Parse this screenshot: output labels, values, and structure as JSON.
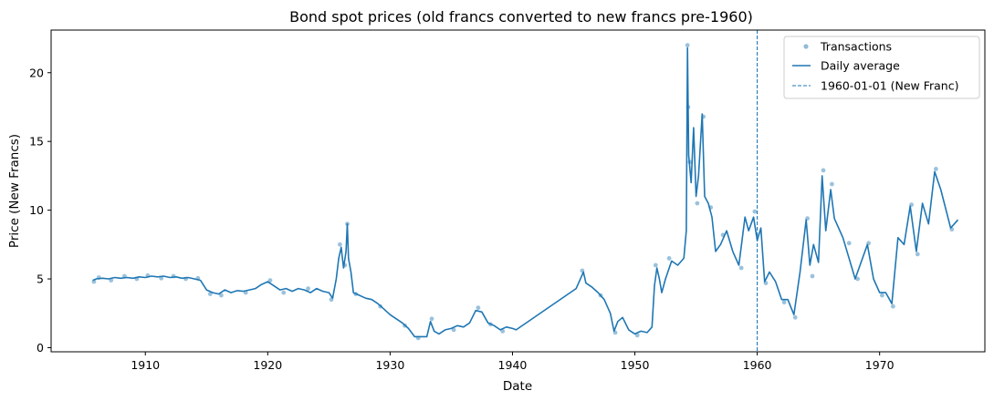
{
  "chart_data": {
    "type": "line",
    "title": "Bond spot prices (old francs converted to new francs pre-1960)",
    "xlabel": "Date",
    "ylabel": "Price (New Francs)",
    "xlim": [
      1902.3,
      1978.6
    ],
    "ylim": [
      -0.3,
      23.1
    ],
    "x_ticks": [
      1910,
      1920,
      1930,
      1940,
      1950,
      1960,
      1970
    ],
    "y_ticks": [
      0,
      5,
      10,
      15,
      20
    ],
    "grid": false,
    "legend_position": "top-right",
    "colors": {
      "line": "#1f77b4",
      "points": "#1f77b4",
      "vline": "#1f77b4"
    },
    "legend": [
      {
        "label": "Transactions",
        "kind": "points"
      },
      {
        "label": "Daily average",
        "kind": "line"
      },
      {
        "label": "1960-01-01 (New Franc)",
        "kind": "dashed"
      }
    ],
    "reference_line": {
      "label": "1960-01-01 (New Franc)",
      "x": 1960.0
    },
    "series": [
      {
        "name": "Daily average",
        "points": [
          [
            1905.7,
            4.9
          ],
          [
            1906.0,
            5.0
          ],
          [
            1906.5,
            5.05
          ],
          [
            1907.0,
            5.0
          ],
          [
            1907.5,
            5.1
          ],
          [
            1908.0,
            5.05
          ],
          [
            1908.5,
            5.1
          ],
          [
            1909.0,
            5.05
          ],
          [
            1909.5,
            5.15
          ],
          [
            1910.0,
            5.1
          ],
          [
            1910.5,
            5.2
          ],
          [
            1911.0,
            5.15
          ],
          [
            1911.5,
            5.2
          ],
          [
            1912.0,
            5.1
          ],
          [
            1912.5,
            5.15
          ],
          [
            1913.0,
            5.05
          ],
          [
            1913.5,
            5.1
          ],
          [
            1914.0,
            5.0
          ],
          [
            1914.5,
            4.9
          ],
          [
            1915.0,
            4.2
          ],
          [
            1915.5,
            4.0
          ],
          [
            1916.0,
            3.9
          ],
          [
            1916.5,
            4.2
          ],
          [
            1917.0,
            4.0
          ],
          [
            1917.5,
            4.15
          ],
          [
            1918.0,
            4.1
          ],
          [
            1918.5,
            4.2
          ],
          [
            1919.0,
            4.3
          ],
          [
            1919.5,
            4.6
          ],
          [
            1920.0,
            4.8
          ],
          [
            1920.5,
            4.5
          ],
          [
            1921.0,
            4.2
          ],
          [
            1921.5,
            4.3
          ],
          [
            1922.0,
            4.1
          ],
          [
            1922.5,
            4.3
          ],
          [
            1923.0,
            4.2
          ],
          [
            1923.5,
            4.0
          ],
          [
            1924.0,
            4.3
          ],
          [
            1924.5,
            4.1
          ],
          [
            1925.0,
            4.0
          ],
          [
            1925.3,
            3.6
          ],
          [
            1925.6,
            5.0
          ],
          [
            1925.8,
            6.5
          ],
          [
            1926.0,
            7.3
          ],
          [
            1926.2,
            5.8
          ],
          [
            1926.4,
            7.0
          ],
          [
            1926.5,
            9.0
          ],
          [
            1926.6,
            6.5
          ],
          [
            1926.8,
            5.5
          ],
          [
            1927.0,
            4.0
          ],
          [
            1927.5,
            3.8
          ],
          [
            1928.0,
            3.6
          ],
          [
            1928.5,
            3.5
          ],
          [
            1929.0,
            3.2
          ],
          [
            1929.5,
            2.8
          ],
          [
            1930.0,
            2.4
          ],
          [
            1930.5,
            2.1
          ],
          [
            1931.0,
            1.8
          ],
          [
            1931.5,
            1.4
          ],
          [
            1932.0,
            0.8
          ],
          [
            1932.5,
            0.8
          ],
          [
            1933.0,
            0.8
          ],
          [
            1933.3,
            1.9
          ],
          [
            1933.6,
            1.2
          ],
          [
            1934.0,
            1.0
          ],
          [
            1934.5,
            1.3
          ],
          [
            1935.0,
            1.4
          ],
          [
            1935.5,
            1.6
          ],
          [
            1936.0,
            1.5
          ],
          [
            1936.5,
            1.8
          ],
          [
            1937.0,
            2.7
          ],
          [
            1937.5,
            2.6
          ],
          [
            1938.0,
            1.8
          ],
          [
            1938.5,
            1.6
          ],
          [
            1939.0,
            1.3
          ],
          [
            1939.5,
            1.5
          ],
          [
            1940.0,
            1.4
          ],
          [
            1940.3,
            1.3
          ],
          [
            1945.2,
            4.3
          ],
          [
            1945.5,
            4.9
          ],
          [
            1945.8,
            5.5
          ],
          [
            1946.0,
            4.7
          ],
          [
            1946.5,
            4.4
          ],
          [
            1947.0,
            4.0
          ],
          [
            1947.5,
            3.5
          ],
          [
            1948.0,
            2.5
          ],
          [
            1948.3,
            1.2
          ],
          [
            1948.6,
            1.9
          ],
          [
            1949.0,
            2.2
          ],
          [
            1949.5,
            1.3
          ],
          [
            1950.0,
            1.0
          ],
          [
            1950.5,
            1.2
          ],
          [
            1951.0,
            1.1
          ],
          [
            1951.4,
            1.5
          ],
          [
            1951.6,
            4.5
          ],
          [
            1951.8,
            5.8
          ],
          [
            1952.0,
            5.0
          ],
          [
            1952.2,
            4.0
          ],
          [
            1952.5,
            5.0
          ],
          [
            1953.0,
            6.3
          ],
          [
            1953.5,
            6.0
          ],
          [
            1954.0,
            6.5
          ],
          [
            1954.2,
            8.5
          ],
          [
            1954.3,
            21.8
          ],
          [
            1954.4,
            14.0
          ],
          [
            1954.6,
            12.0
          ],
          [
            1954.8,
            16.0
          ],
          [
            1955.0,
            11.0
          ],
          [
            1955.2,
            12.5
          ],
          [
            1955.5,
            17.0
          ],
          [
            1955.7,
            11.0
          ],
          [
            1956.0,
            10.5
          ],
          [
            1956.3,
            9.5
          ],
          [
            1956.6,
            7.0
          ],
          [
            1957.0,
            7.5
          ],
          [
            1957.5,
            8.5
          ],
          [
            1958.0,
            7.0
          ],
          [
            1958.5,
            6.0
          ],
          [
            1959.0,
            9.5
          ],
          [
            1959.3,
            8.5
          ],
          [
            1959.7,
            9.5
          ],
          [
            1960.0,
            7.8
          ],
          [
            1960.3,
            8.7
          ],
          [
            1960.6,
            4.8
          ],
          [
            1961.0,
            5.5
          ],
          [
            1961.5,
            4.8
          ],
          [
            1962.0,
            3.5
          ],
          [
            1962.5,
            3.5
          ],
          [
            1963.0,
            2.4
          ],
          [
            1963.5,
            5.5
          ],
          [
            1964.0,
            9.3
          ],
          [
            1964.3,
            6.0
          ],
          [
            1964.6,
            7.5
          ],
          [
            1965.0,
            6.2
          ],
          [
            1965.3,
            12.5
          ],
          [
            1965.6,
            8.5
          ],
          [
            1966.0,
            11.5
          ],
          [
            1966.3,
            9.4
          ],
          [
            1967.0,
            8.0
          ],
          [
            1968.0,
            5.0
          ],
          [
            1969.0,
            7.5
          ],
          [
            1969.5,
            5.0
          ],
          [
            1970.0,
            4.0
          ],
          [
            1970.5,
            4.0
          ],
          [
            1971.0,
            3.2
          ],
          [
            1971.5,
            8.0
          ],
          [
            1972.0,
            7.5
          ],
          [
            1972.5,
            10.3
          ],
          [
            1973.0,
            7.0
          ],
          [
            1973.5,
            10.5
          ],
          [
            1974.0,
            9.0
          ],
          [
            1974.5,
            12.8
          ],
          [
            1975.0,
            11.5
          ],
          [
            1975.8,
            8.7
          ],
          [
            1976.4,
            9.3
          ]
        ]
      },
      {
        "name": "Transactions",
        "points": [
          [
            1905.8,
            4.8
          ],
          [
            1906.2,
            5.1
          ],
          [
            1907.2,
            4.9
          ],
          [
            1908.3,
            5.2
          ],
          [
            1909.3,
            5.0
          ],
          [
            1910.2,
            5.25
          ],
          [
            1911.3,
            5.05
          ],
          [
            1912.3,
            5.2
          ],
          [
            1913.3,
            5.0
          ],
          [
            1914.3,
            5.05
          ],
          [
            1915.3,
            3.9
          ],
          [
            1916.2,
            3.8
          ],
          [
            1918.2,
            4.0
          ],
          [
            1920.2,
            4.9
          ],
          [
            1921.3,
            4.0
          ],
          [
            1923.3,
            4.3
          ],
          [
            1925.2,
            3.5
          ],
          [
            1925.9,
            7.5
          ],
          [
            1926.3,
            6.0
          ],
          [
            1926.5,
            9.0
          ],
          [
            1927.2,
            3.9
          ],
          [
            1929.2,
            3.0
          ],
          [
            1931.2,
            1.6
          ],
          [
            1932.3,
            0.7
          ],
          [
            1933.4,
            2.1
          ],
          [
            1935.2,
            1.3
          ],
          [
            1937.2,
            2.9
          ],
          [
            1938.2,
            1.7
          ],
          [
            1939.2,
            1.2
          ],
          [
            1945.7,
            5.6
          ],
          [
            1947.2,
            3.8
          ],
          [
            1948.4,
            1.1
          ],
          [
            1950.2,
            0.9
          ],
          [
            1951.7,
            6.0
          ],
          [
            1952.8,
            6.5
          ],
          [
            1954.3,
            22.0
          ],
          [
            1954.35,
            17.5
          ],
          [
            1954.5,
            13.5
          ],
          [
            1955.1,
            10.5
          ],
          [
            1955.6,
            16.8
          ],
          [
            1956.2,
            10.2
          ],
          [
            1957.2,
            8.2
          ],
          [
            1958.7,
            5.8
          ],
          [
            1959.8,
            9.9
          ],
          [
            1960.7,
            4.7
          ],
          [
            1962.2,
            3.3
          ],
          [
            1963.1,
            2.2
          ],
          [
            1964.1,
            9.4
          ],
          [
            1964.5,
            5.2
          ],
          [
            1965.4,
            12.9
          ],
          [
            1966.1,
            11.9
          ],
          [
            1967.5,
            7.6
          ],
          [
            1968.2,
            5.0
          ],
          [
            1969.1,
            7.6
          ],
          [
            1970.2,
            3.8
          ],
          [
            1971.1,
            3.0
          ],
          [
            1972.6,
            10.4
          ],
          [
            1973.1,
            6.8
          ],
          [
            1974.6,
            13.0
          ],
          [
            1975.9,
            8.6
          ]
        ]
      }
    ]
  }
}
